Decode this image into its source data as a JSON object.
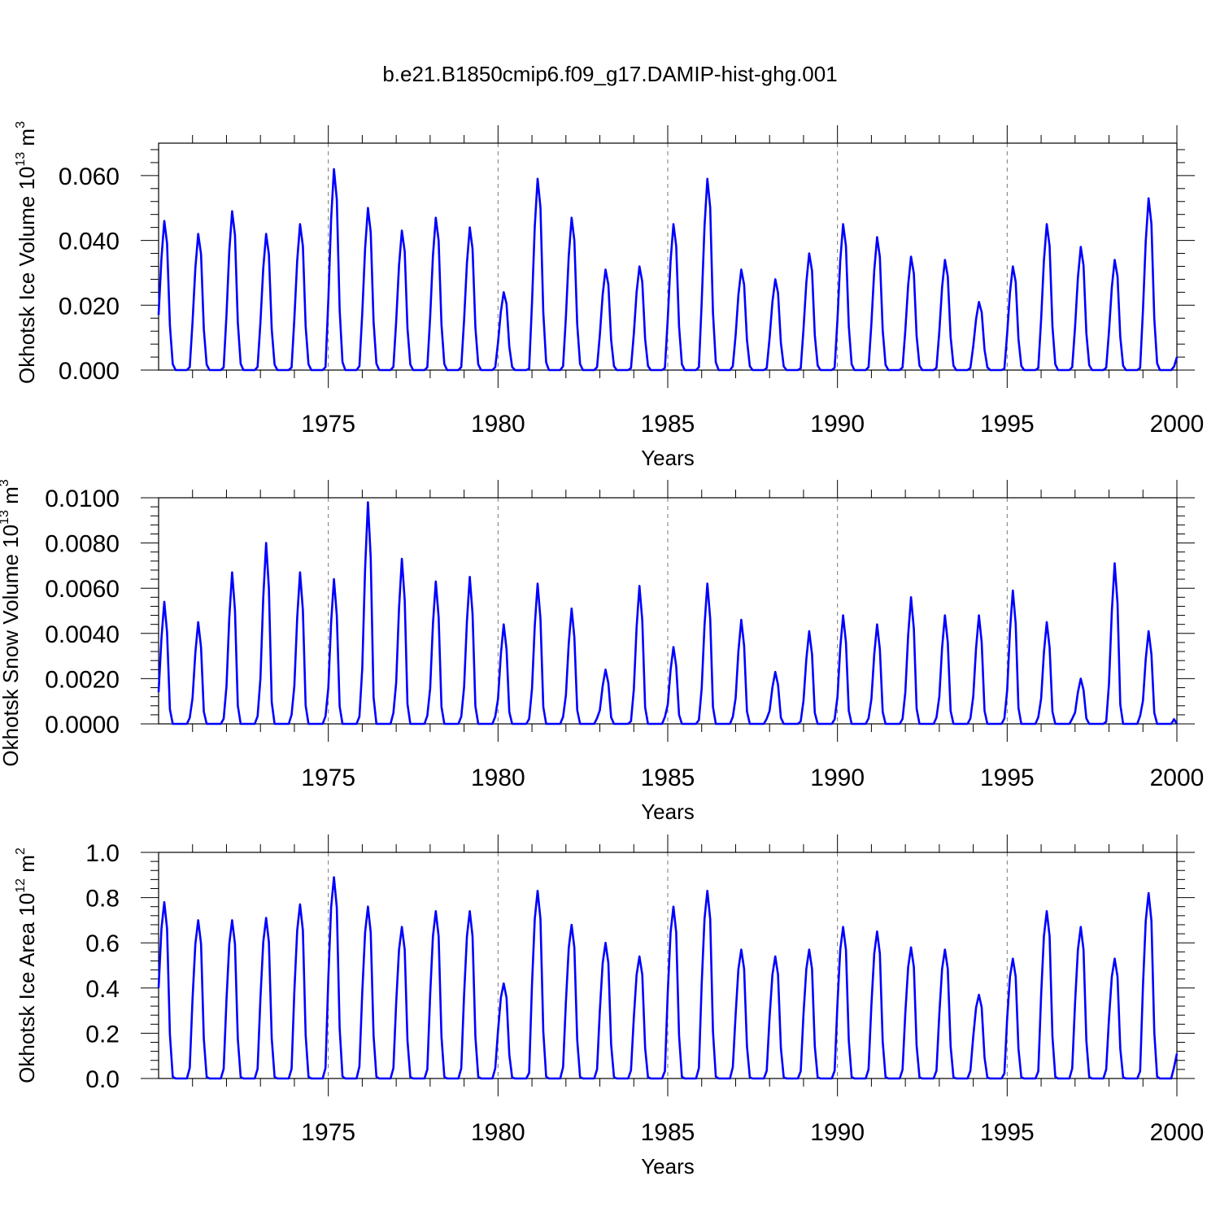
{
  "title": "b.e21.B1850cmip6.f09_g17.DAMIP-hist-ghg.001",
  "line_color": "#0000ff",
  "chart_data": [
    {
      "type": "line",
      "ylabel": {
        "prefix": "Okhotsk Ice Volume 10",
        "exp": "13",
        "unit": " m",
        "unit_exp": "3"
      },
      "xlabel": "Years",
      "xlim": [
        1970,
        2000
      ],
      "ylim": [
        0,
        0.07
      ],
      "yticks": [
        0.0,
        0.02,
        0.04,
        0.06
      ],
      "ytick_labels": [
        "0.000",
        "0.020",
        "0.040",
        "0.060"
      ],
      "xticks": [
        1975,
        1980,
        1985,
        1990,
        1995,
        2000
      ],
      "xtick_labels": [
        "1975",
        "1980",
        "1985",
        "1990",
        "1995",
        "2000"
      ],
      "grid": "vertical dashed at major x ticks",
      "series": [
        {
          "name": "Okhotsk Ice Volume",
          "start_year": 1970,
          "step": 0.0833333,
          "annual_peaks": [
            0.046,
            0.042,
            0.049,
            0.042,
            0.045,
            0.062,
            0.05,
            0.043,
            0.047,
            0.044,
            0.024,
            0.059,
            0.047,
            0.031,
            0.032,
            0.045,
            0.059,
            0.031,
            0.028,
            0.036,
            0.045,
            0.041,
            0.035,
            0.034,
            0.021,
            0.032,
            0.045,
            0.038,
            0.034,
            0.053
          ],
          "pattern": [
            0.35,
            0.75,
            1.0,
            0.85,
            0.3,
            0.04,
            0.0,
            0.0,
            0.0,
            0.0,
            0.0,
            0.02
          ],
          "first_value": 0.017,
          "last_value": 0.004
        }
      ]
    },
    {
      "type": "line",
      "ylabel": {
        "prefix": "Okhotsk Snow Volume 10",
        "exp": "13",
        "unit": " m",
        "unit_exp": "3"
      },
      "xlabel": "Years",
      "xlim": [
        1970,
        2000
      ],
      "ylim": [
        0,
        0.01
      ],
      "yticks": [
        0.0,
        0.002,
        0.004,
        0.006,
        0.008,
        0.01
      ],
      "ytick_labels": [
        "0.0000",
        "0.0020",
        "0.0040",
        "0.0060",
        "0.0080",
        "0.0100"
      ],
      "xticks": [
        1975,
        1980,
        1985,
        1990,
        1995,
        2000
      ],
      "xtick_labels": [
        "1975",
        "1980",
        "1985",
        "1990",
        "1995",
        "2000"
      ],
      "grid": "vertical dashed at major x ticks",
      "series": [
        {
          "name": "Okhotsk Snow Volume",
          "start_year": 1970,
          "step": 0.0833333,
          "annual_peaks": [
            0.0054,
            0.0045,
            0.0067,
            0.008,
            0.0067,
            0.0064,
            0.0098,
            0.0073,
            0.0063,
            0.0065,
            0.0044,
            0.0062,
            0.0051,
            0.0024,
            0.0061,
            0.0034,
            0.0062,
            0.0046,
            0.0023,
            0.0041,
            0.0048,
            0.0044,
            0.0056,
            0.0048,
            0.0048,
            0.0059,
            0.0045,
            0.002,
            0.0071,
            0.0041
          ],
          "pattern": [
            0.25,
            0.7,
            1.0,
            0.75,
            0.12,
            0.0,
            0.0,
            0.0,
            0.0,
            0.0,
            0.0,
            0.05
          ],
          "first_value": 0.0014,
          "last_value": 0.0
        }
      ]
    },
    {
      "type": "line",
      "ylabel": {
        "prefix": "Okhotsk Ice Area 10",
        "exp": "12",
        "unit": " m",
        "unit_exp": "2"
      },
      "xlabel": "Years",
      "xlim": [
        1970,
        2000
      ],
      "ylim": [
        0,
        1.0
      ],
      "yticks": [
        0.0,
        0.2,
        0.4,
        0.6,
        0.8,
        1.0
      ],
      "ytick_labels": [
        "0.0",
        "0.2",
        "0.4",
        "0.6",
        "0.8",
        "1.0"
      ],
      "xticks": [
        1975,
        1980,
        1985,
        1990,
        1995,
        2000
      ],
      "xtick_labels": [
        "1975",
        "1980",
        "1985",
        "1990",
        "1995",
        "2000"
      ],
      "grid": "vertical dashed at major x ticks",
      "series": [
        {
          "name": "Okhotsk Ice Area",
          "start_year": 1970,
          "step": 0.0833333,
          "annual_peaks": [
            0.78,
            0.7,
            0.7,
            0.71,
            0.77,
            0.89,
            0.76,
            0.67,
            0.74,
            0.74,
            0.42,
            0.83,
            0.68,
            0.6,
            0.54,
            0.76,
            0.83,
            0.57,
            0.54,
            0.57,
            0.67,
            0.65,
            0.58,
            0.57,
            0.37,
            0.53,
            0.74,
            0.67,
            0.53,
            0.82
          ],
          "pattern": [
            0.5,
            0.85,
            1.0,
            0.85,
            0.25,
            0.01,
            0.0,
            0.0,
            0.0,
            0.0,
            0.0,
            0.06
          ],
          "first_value": 0.4,
          "last_value": 0.11
        }
      ]
    }
  ]
}
